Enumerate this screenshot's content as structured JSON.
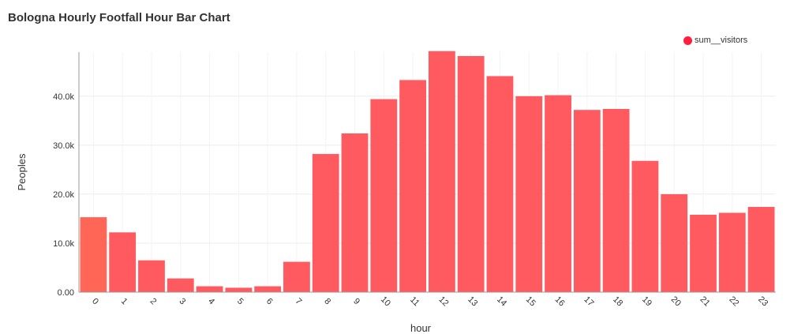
{
  "chart_data": {
    "type": "bar",
    "title": "Bologna Hourly Footfall Hour Bar Chart",
    "xlabel": "hour",
    "ylabel": "Peoples",
    "legend": {
      "position": "top-right",
      "entries": [
        "sum__visitors"
      ]
    },
    "grid": true,
    "ylim": [
      0,
      49000
    ],
    "yticks": [
      "0.00",
      "10.0k",
      "20.0k",
      "30.0k",
      "40.0k"
    ],
    "ytick_values": [
      0,
      10000,
      20000,
      30000,
      40000
    ],
    "categories": [
      "0",
      "1",
      "2",
      "3",
      "4",
      "5",
      "6",
      "7",
      "8",
      "9",
      "10",
      "11",
      "12",
      "13",
      "14",
      "15",
      "16",
      "17",
      "18",
      "19",
      "20",
      "21",
      "22",
      "23"
    ],
    "series": [
      {
        "name": "sum__visitors",
        "color": "#ff5a5f",
        "values": [
          15300,
          12200,
          6500,
          2800,
          1200,
          900,
          1200,
          6200,
          28200,
          32400,
          39400,
          43300,
          49200,
          48200,
          44100,
          40000,
          40200,
          37200,
          37400,
          26800,
          20000,
          15800,
          16200,
          17400
        ]
      }
    ],
    "colors": {
      "bar": "#ff5a5f",
      "first_bar": "#ff6655",
      "legend_dot": "#ff1f3d",
      "grid": "#ececec",
      "axis": "#999999"
    }
  }
}
